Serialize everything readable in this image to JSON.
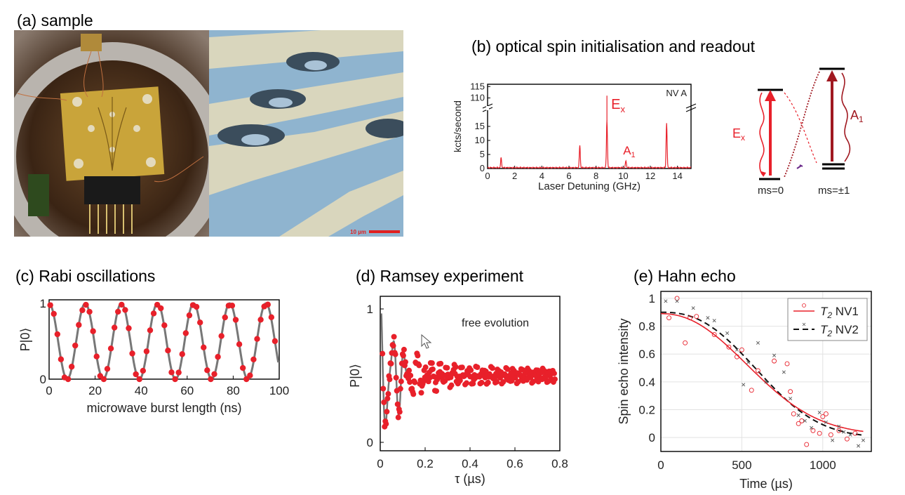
{
  "panels": {
    "a": {
      "label": "(a) sample",
      "scalebar_text": "10 µm"
    },
    "b": {
      "label": "(b) optical spin initialisation and readout"
    },
    "c": {
      "label": "(c) Rabi oscillations"
    },
    "d": {
      "label": "(d) Ramsey experiment"
    },
    "e": {
      "label": "(e) Hahn echo"
    }
  },
  "colors": {
    "red": "#e8202a",
    "darkred": "#a01820",
    "grey": "#777777",
    "blue": "#8fb4cf"
  },
  "chart_data": [
    {
      "id": "b-spectrum",
      "type": "line",
      "xlabel": "Laser Detuning  (GHz)",
      "ylabel": "kcts/second",
      "xlim": [
        0,
        15
      ],
      "xticks": [
        0,
        2,
        4,
        6,
        8,
        10,
        12,
        14
      ],
      "yticks_low": [
        0,
        5,
        10,
        15
      ],
      "yticks_high": [
        110,
        115
      ],
      "annotation": "NV A",
      "peaks": [
        {
          "x": 1.0,
          "y": 3.5
        },
        {
          "x": 6.8,
          "y": 8.0
        },
        {
          "x": 8.8,
          "y": 17.0,
          "label": "E_x"
        },
        {
          "x": 10.2,
          "y": 2.5,
          "label": "A_1"
        },
        {
          "x": 13.2,
          "y": 16.0
        }
      ],
      "peak_labels": {
        "Ex": "E",
        "Ex_sub": "x",
        "A1": "A",
        "A1_sub": "1"
      }
    },
    {
      "id": "b-levels",
      "type": "diagram",
      "labels": {
        "Ex": "E",
        "Ex_sub": "x",
        "A1": "A",
        "A1_sub": "1",
        "ms0": "ms=0",
        "ms1": "ms=±1"
      }
    },
    {
      "id": "c-rabi",
      "type": "scatter",
      "xlabel": "microwave burst length (ns)",
      "ylabel": "P|0⟩",
      "xlim": [
        0,
        100
      ],
      "ylim": [
        0,
        1
      ],
      "xticks": [
        0,
        20,
        40,
        60,
        80,
        100
      ],
      "yticks": [
        0,
        1
      ],
      "period_ns": 15.7
    },
    {
      "id": "d-ramsey",
      "type": "scatter",
      "xlabel": "τ (µs)",
      "ylabel": "P|0⟩",
      "xlim": [
        0,
        0.8
      ],
      "ylim": [
        0,
        1
      ],
      "xticks": [
        "0",
        "0.2",
        "0.4",
        "0.6",
        "0.8"
      ],
      "yticks": [
        "0",
        "1"
      ],
      "annotation": "free evolution"
    },
    {
      "id": "e-hahn",
      "type": "line",
      "xlabel": "Time (µs)",
      "ylabel": "Spin echo intensity",
      "xlim": [
        0,
        1300
      ],
      "ylim": [
        -0.1,
        1.05
      ],
      "xticks": [
        0,
        500,
        1000
      ],
      "yticks": [
        0,
        0.2,
        0.4,
        0.6,
        0.8,
        1
      ],
      "series": [
        {
          "name": "T2 NV1",
          "name_main": "T",
          "name_sub": "2",
          "name_tail": " NV1",
          "color": "#e8202a",
          "points": [
            [
              50,
              0.86
            ],
            [
              100,
              1.0
            ],
            [
              150,
              0.68
            ],
            [
              180,
              0.86
            ],
            [
              220,
              0.87
            ],
            [
              330,
              0.74
            ],
            [
              420,
              0.65
            ],
            [
              470,
              0.58
            ],
            [
              500,
              0.63
            ],
            [
              560,
              0.34
            ],
            [
              600,
              0.48
            ],
            [
              700,
              0.55
            ],
            [
              780,
              0.53
            ],
            [
              800,
              0.33
            ],
            [
              820,
              0.17
            ],
            [
              850,
              0.1
            ],
            [
              870,
              0.12
            ],
            [
              900,
              -0.05
            ],
            [
              940,
              0.05
            ],
            [
              980,
              0.03
            ],
            [
              1000,
              0.15
            ],
            [
              1020,
              0.17
            ],
            [
              1050,
              0.02
            ],
            [
              1100,
              0.05
            ],
            [
              1150,
              -0.01
            ],
            [
              1200,
              0.03
            ]
          ]
        },
        {
          "name": "T2 NV2",
          "name_main": "T",
          "name_sub": "2",
          "name_tail": " NV2",
          "color": "#222222",
          "points": [
            [
              30,
              0.98
            ],
            [
              100,
              0.98
            ],
            [
              200,
              0.93
            ],
            [
              290,
              0.86
            ],
            [
              330,
              0.84
            ],
            [
              410,
              0.75
            ],
            [
              470,
              0.63
            ],
            [
              510,
              0.38
            ],
            [
              540,
              0.54
            ],
            [
              600,
              0.68
            ],
            [
              650,
              0.4
            ],
            [
              700,
              0.59
            ],
            [
              760,
              0.47
            ],
            [
              800,
              0.28
            ],
            [
              850,
              0.16
            ],
            [
              890,
              0.12
            ],
            [
              930,
              0.07
            ],
            [
              980,
              0.18
            ],
            [
              1020,
              0.11
            ],
            [
              1060,
              -0.02
            ],
            [
              1100,
              0.08
            ],
            [
              1130,
              0.04
            ],
            [
              1170,
              0.02
            ],
            [
              1220,
              -0.06
            ],
            [
              1250,
              -0.02
            ]
          ]
        }
      ]
    }
  ]
}
